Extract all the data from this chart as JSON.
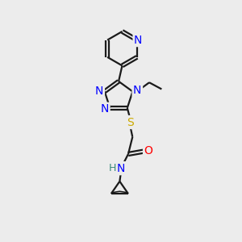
{
  "bg_color": "#ececec",
  "bond_color": "#1a1a1a",
  "bond_width": 1.6,
  "atom_colors": {
    "N": "#0000ff",
    "S": "#ccaa00",
    "O": "#ff0000",
    "H": "#3a8a7a",
    "C": "#1a1a1a"
  },
  "font_size": 10,
  "xlim": [
    0,
    10
  ],
  "ylim": [
    0,
    10
  ]
}
